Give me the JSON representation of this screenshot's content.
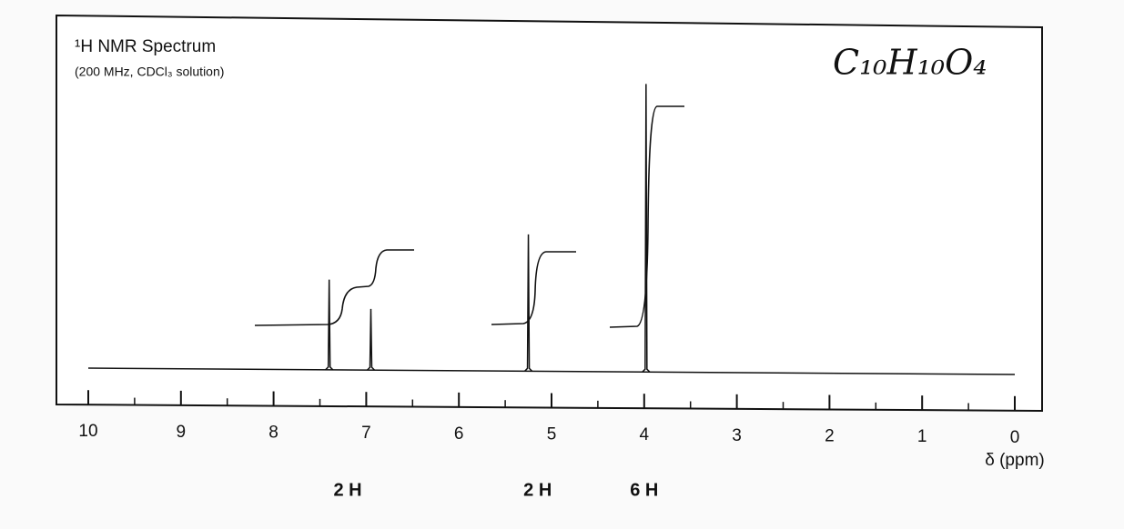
{
  "chart_data": {
    "type": "nmr",
    "title": "¹H NMR Spectrum",
    "subtitle": "(200 MHz, CDCl₃ solution)",
    "formula": "C₁₀H₁₀O₄",
    "x_label": "δ (ppm)",
    "xlim": [
      10,
      0
    ],
    "xticks": [
      10,
      9,
      8,
      7,
      6,
      5,
      4,
      3,
      2,
      1,
      0
    ],
    "xminorticks": [
      9.5,
      8.5,
      7.5,
      6.5,
      5.5,
      4.5,
      3.5,
      2.5,
      1.5,
      0.5
    ],
    "ylim": [
      0,
      100
    ],
    "x": [
      7.4,
      6.95,
      5.25,
      3.98
    ],
    "values": [
      31,
      21,
      47,
      99
    ],
    "color": "#111111",
    "annotations": [
      {
        "text": "2 H",
        "x": 7.2
      },
      {
        "text": "2 H",
        "x": 5.15
      },
      {
        "text": "6 H",
        "x": 4.0
      }
    ]
  }
}
